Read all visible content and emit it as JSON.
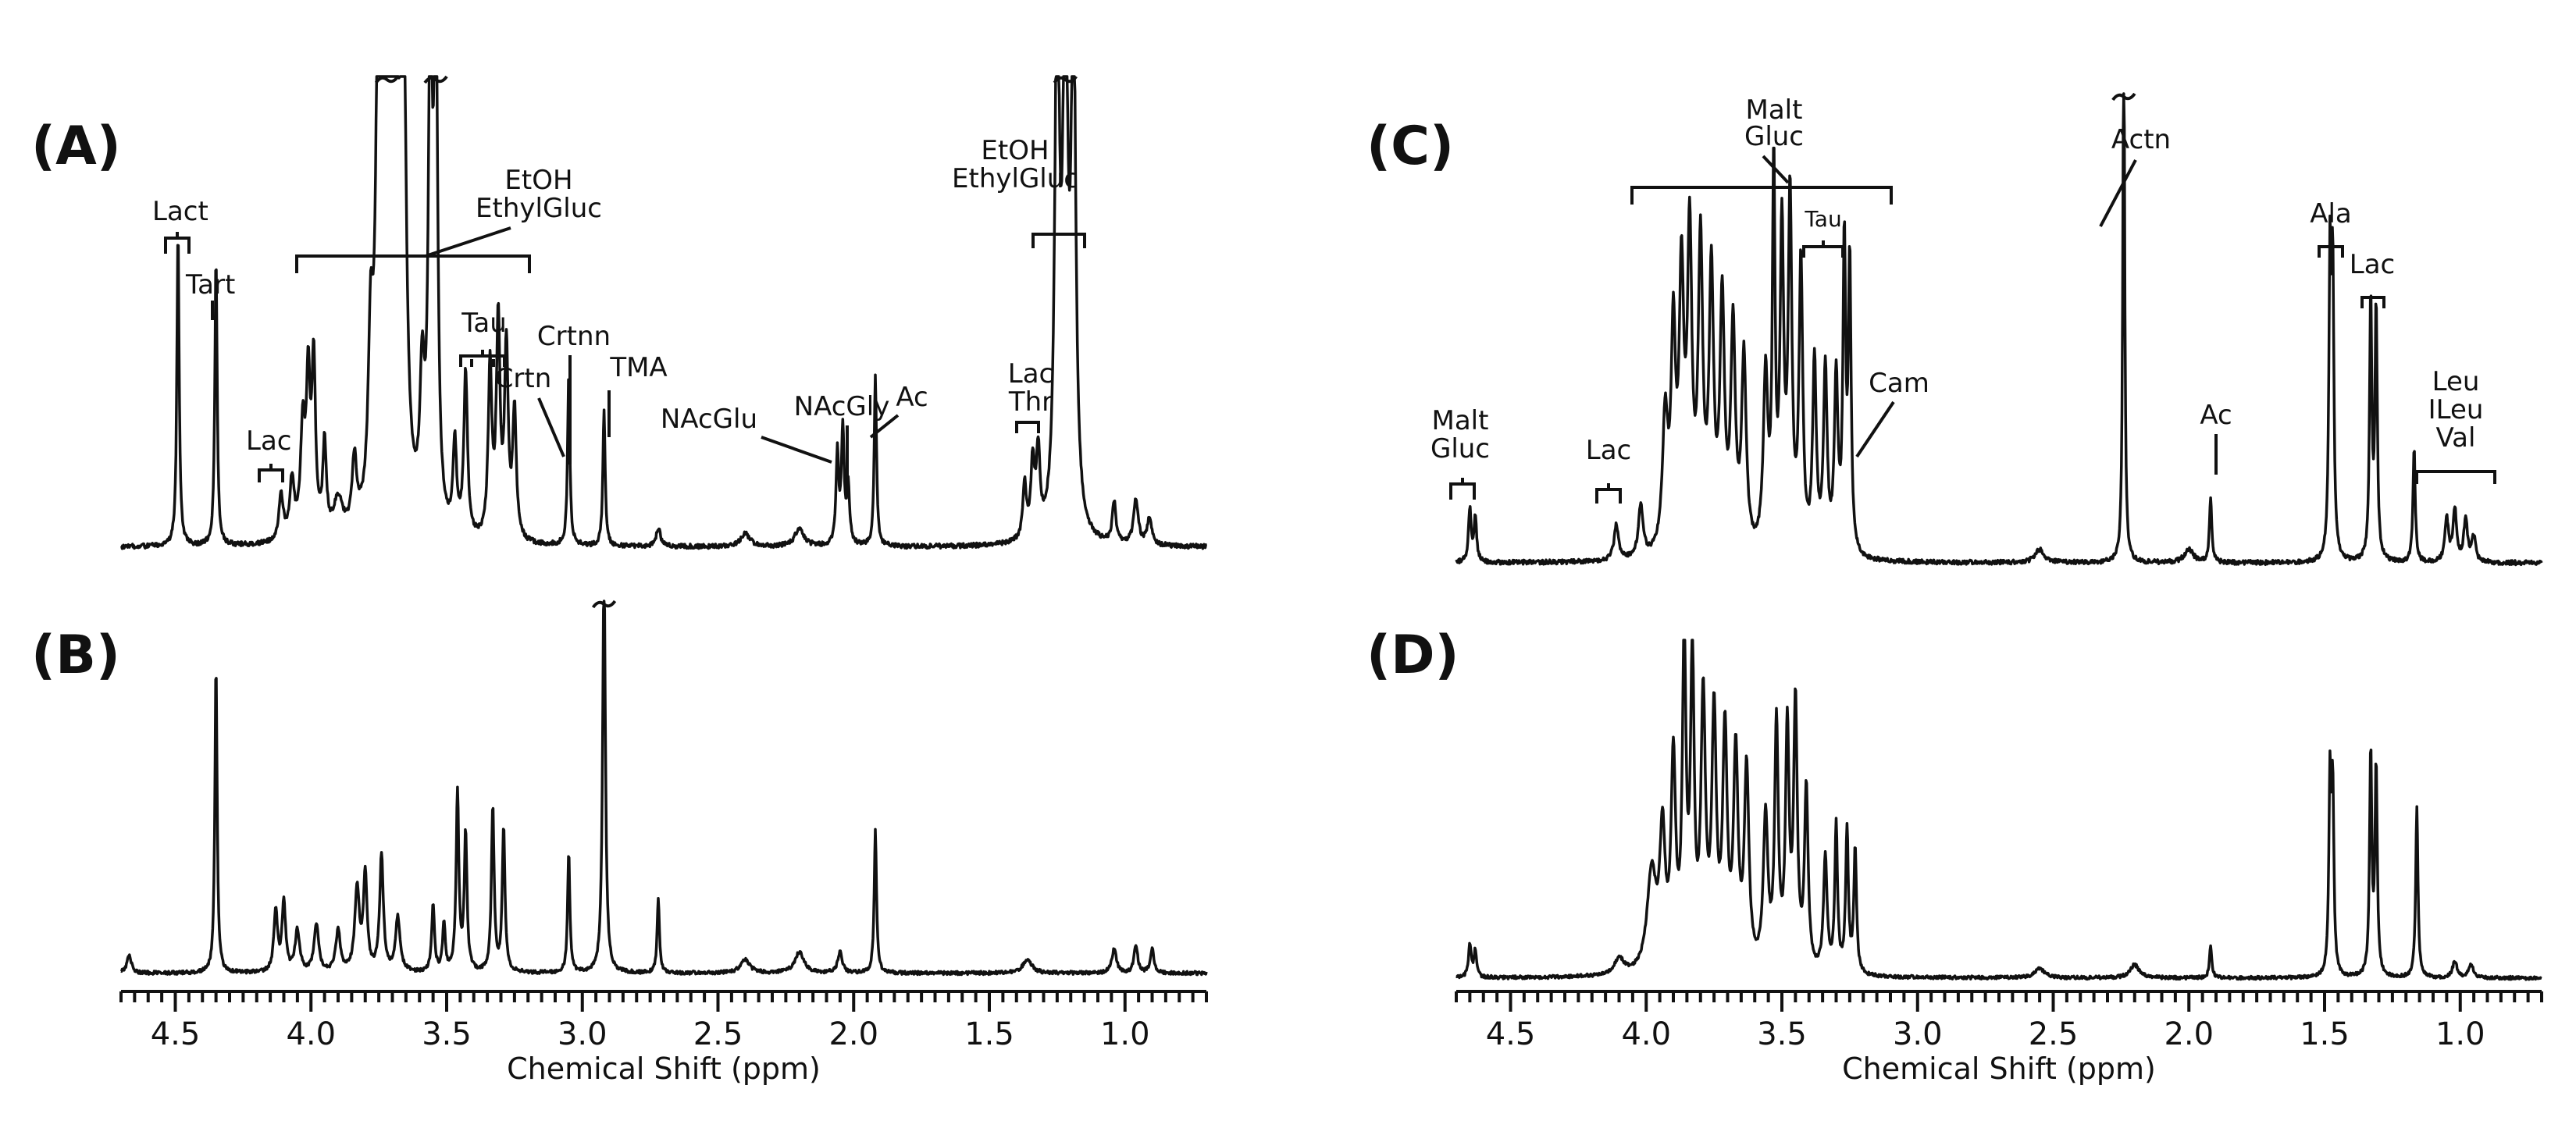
{
  "chart_data": [
    {
      "type": "line",
      "panel": "(A)",
      "x_unit": "Chemical Shift (ppm)",
      "xlim": [
        4.7,
        0.7
      ],
      "peaks": [
        {
          "x": 4.7,
          "y": 0.0,
          "w": 0.03
        },
        {
          "x": 4.49,
          "y": 0.7,
          "w": 0.005
        },
        {
          "x": 4.35,
          "y": 0.64,
          "w": 0.005
        },
        {
          "x": 4.11,
          "y": 0.1,
          "w": 0.01
        },
        {
          "x": 4.07,
          "y": 0.13,
          "w": 0.01
        },
        {
          "x": 4.03,
          "y": 0.24,
          "w": 0.01
        },
        {
          "x": 4.01,
          "y": 0.33,
          "w": 0.008
        },
        {
          "x": 3.99,
          "y": 0.38,
          "w": 0.008
        },
        {
          "x": 3.95,
          "y": 0.2,
          "w": 0.008
        },
        {
          "x": 3.9,
          "y": 0.08,
          "w": 0.02
        },
        {
          "x": 3.84,
          "y": 0.15,
          "w": 0.01
        },
        {
          "x": 3.78,
          "y": 0.35,
          "w": 0.01
        },
        {
          "x": 3.75,
          "y": 1.2,
          "w": 0.012
        },
        {
          "x": 3.72,
          "y": 1.22,
          "w": 0.012
        },
        {
          "x": 3.69,
          "y": 1.18,
          "w": 0.012
        },
        {
          "x": 3.66,
          "y": 1.14,
          "w": 0.012
        },
        {
          "x": 3.59,
          "y": 0.3,
          "w": 0.01
        },
        {
          "x": 3.56,
          "y": 1.15,
          "w": 0.008
        },
        {
          "x": 3.54,
          "y": 1.18,
          "w": 0.008
        },
        {
          "x": 3.47,
          "y": 0.2,
          "w": 0.008
        },
        {
          "x": 3.43,
          "y": 0.36,
          "w": 0.008
        },
        {
          "x": 3.34,
          "y": 0.38,
          "w": 0.008
        },
        {
          "x": 3.31,
          "y": 0.48,
          "w": 0.008
        },
        {
          "x": 3.28,
          "y": 0.42,
          "w": 0.008
        },
        {
          "x": 3.25,
          "y": 0.28,
          "w": 0.008
        },
        {
          "x": 3.05,
          "y": 0.38,
          "w": 0.005
        },
        {
          "x": 2.92,
          "y": 0.3,
          "w": 0.005
        },
        {
          "x": 2.72,
          "y": 0.04,
          "w": 0.01
        },
        {
          "x": 2.4,
          "y": 0.03,
          "w": 0.02
        },
        {
          "x": 2.2,
          "y": 0.04,
          "w": 0.02
        },
        {
          "x": 2.06,
          "y": 0.2,
          "w": 0.006
        },
        {
          "x": 2.04,
          "y": 0.25,
          "w": 0.006
        },
        {
          "x": 2.02,
          "y": 0.13,
          "w": 0.006
        },
        {
          "x": 1.92,
          "y": 0.38,
          "w": 0.005
        },
        {
          "x": 1.37,
          "y": 0.12,
          "w": 0.008
        },
        {
          "x": 1.34,
          "y": 0.16,
          "w": 0.008
        },
        {
          "x": 1.32,
          "y": 0.18,
          "w": 0.008
        },
        {
          "x": 1.25,
          "y": 1.2,
          "w": 0.01
        },
        {
          "x": 1.22,
          "y": 1.2,
          "w": 0.01
        },
        {
          "x": 1.19,
          "y": 1.16,
          "w": 0.01
        },
        {
          "x": 1.04,
          "y": 0.09,
          "w": 0.008
        },
        {
          "x": 0.96,
          "y": 0.1,
          "w": 0.01
        },
        {
          "x": 0.91,
          "y": 0.06,
          "w": 0.01
        }
      ],
      "clipped_peaks": [
        3.72,
        3.54,
        1.22
      ],
      "annotations": [
        {
          "label": "Lact",
          "x": 4.49
        },
        {
          "label": "Tart",
          "x": 4.35
        },
        {
          "label": "Lac",
          "x": 4.11
        },
        {
          "label": "EtOH EthylGluc",
          "x": 3.72
        },
        {
          "label": "Tau",
          "x": 3.34
        },
        {
          "label": "Crtn",
          "x": 3.05
        },
        {
          "label": "Crtnn",
          "x": 3.05
        },
        {
          "label": "TMA",
          "x": 2.92
        },
        {
          "label": "NAcGlu",
          "x": 2.06
        },
        {
          "label": "NAcGly",
          "x": 2.03
        },
        {
          "label": "Ac",
          "x": 1.92
        },
        {
          "label": "Lac Thr",
          "x": 1.33
        },
        {
          "label": "EtOH EthylGluc",
          "x": 1.22
        }
      ]
    },
    {
      "type": "line",
      "panel": "(B)",
      "x_unit": "Chemical Shift (ppm)",
      "xlim": [
        4.7,
        0.7
      ],
      "x_label": "Chemical Shift (ppm)",
      "x_ticks": [
        "4.5",
        "4.0",
        "3.5",
        "3.0",
        "2.5",
        "2.0",
        "1.5",
        "1.0"
      ],
      "peaks": [
        {
          "x": 4.67,
          "y": 0.05,
          "w": 0.01
        },
        {
          "x": 4.35,
          "y": 0.9,
          "w": 0.005
        },
        {
          "x": 4.13,
          "y": 0.18,
          "w": 0.008
        },
        {
          "x": 4.1,
          "y": 0.2,
          "w": 0.008
        },
        {
          "x": 4.05,
          "y": 0.12,
          "w": 0.01
        },
        {
          "x": 3.98,
          "y": 0.14,
          "w": 0.01
        },
        {
          "x": 3.9,
          "y": 0.12,
          "w": 0.01
        },
        {
          "x": 3.83,
          "y": 0.24,
          "w": 0.01
        },
        {
          "x": 3.8,
          "y": 0.28,
          "w": 0.008
        },
        {
          "x": 3.74,
          "y": 0.34,
          "w": 0.008
        },
        {
          "x": 3.68,
          "y": 0.16,
          "w": 0.01
        },
        {
          "x": 3.55,
          "y": 0.2,
          "w": 0.006
        },
        {
          "x": 3.51,
          "y": 0.14,
          "w": 0.006
        },
        {
          "x": 3.46,
          "y": 0.52,
          "w": 0.006
        },
        {
          "x": 3.43,
          "y": 0.4,
          "w": 0.006
        },
        {
          "x": 3.33,
          "y": 0.48,
          "w": 0.006
        },
        {
          "x": 3.29,
          "y": 0.42,
          "w": 0.006
        },
        {
          "x": 3.05,
          "y": 0.35,
          "w": 0.005
        },
        {
          "x": 2.92,
          "y": 1.2,
          "w": 0.006
        },
        {
          "x": 2.72,
          "y": 0.22,
          "w": 0.005
        },
        {
          "x": 2.4,
          "y": 0.04,
          "w": 0.02
        },
        {
          "x": 2.2,
          "y": 0.06,
          "w": 0.02
        },
        {
          "x": 2.05,
          "y": 0.06,
          "w": 0.01
        },
        {
          "x": 1.92,
          "y": 0.42,
          "w": 0.005
        },
        {
          "x": 1.36,
          "y": 0.04,
          "w": 0.02
        },
        {
          "x": 1.04,
          "y": 0.07,
          "w": 0.01
        },
        {
          "x": 0.96,
          "y": 0.08,
          "w": 0.008
        },
        {
          "x": 0.9,
          "y": 0.07,
          "w": 0.008
        }
      ],
      "clipped_peaks": [
        2.92
      ]
    },
    {
      "type": "line",
      "panel": "(C)",
      "x_unit": "Chemical Shift (ppm)",
      "xlim": [
        4.7,
        0.7
      ],
      "peaks": [
        {
          "x": 4.65,
          "y": 0.12,
          "w": 0.006
        },
        {
          "x": 4.63,
          "y": 0.1,
          "w": 0.006
        },
        {
          "x": 4.11,
          "y": 0.08,
          "w": 0.01
        },
        {
          "x": 4.02,
          "y": 0.12,
          "w": 0.01
        },
        {
          "x": 3.93,
          "y": 0.3,
          "w": 0.012
        },
        {
          "x": 3.9,
          "y": 0.48,
          "w": 0.01
        },
        {
          "x": 3.87,
          "y": 0.6,
          "w": 0.01
        },
        {
          "x": 3.84,
          "y": 0.7,
          "w": 0.01
        },
        {
          "x": 3.8,
          "y": 0.68,
          "w": 0.01
        },
        {
          "x": 3.76,
          "y": 0.62,
          "w": 0.01
        },
        {
          "x": 3.72,
          "y": 0.56,
          "w": 0.01
        },
        {
          "x": 3.68,
          "y": 0.5,
          "w": 0.01
        },
        {
          "x": 3.64,
          "y": 0.44,
          "w": 0.01
        },
        {
          "x": 3.56,
          "y": 0.4,
          "w": 0.01
        },
        {
          "x": 3.53,
          "y": 0.86,
          "w": 0.006
        },
        {
          "x": 3.5,
          "y": 0.72,
          "w": 0.008
        },
        {
          "x": 3.47,
          "y": 0.8,
          "w": 0.008
        },
        {
          "x": 3.43,
          "y": 0.66,
          "w": 0.008
        },
        {
          "x": 3.38,
          "y": 0.44,
          "w": 0.008
        },
        {
          "x": 3.34,
          "y": 0.42,
          "w": 0.008
        },
        {
          "x": 3.3,
          "y": 0.4,
          "w": 0.008
        },
        {
          "x": 3.27,
          "y": 0.7,
          "w": 0.006
        },
        {
          "x": 3.25,
          "y": 0.66,
          "w": 0.006
        },
        {
          "x": 2.55,
          "y": 0.03,
          "w": 0.02
        },
        {
          "x": 2.24,
          "y": 1.3,
          "w": 0.004
        },
        {
          "x": 2.0,
          "y": 0.03,
          "w": 0.02
        },
        {
          "x": 1.92,
          "y": 0.15,
          "w": 0.005
        },
        {
          "x": 1.48,
          "y": 0.66,
          "w": 0.005
        },
        {
          "x": 1.47,
          "y": 0.64,
          "w": 0.005
        },
        {
          "x": 1.33,
          "y": 0.6,
          "w": 0.005
        },
        {
          "x": 1.31,
          "y": 0.58,
          "w": 0.005
        },
        {
          "x": 1.17,
          "y": 0.26,
          "w": 0.005
        },
        {
          "x": 1.05,
          "y": 0.1,
          "w": 0.008
        },
        {
          "x": 1.02,
          "y": 0.12,
          "w": 0.008
        },
        {
          "x": 0.98,
          "y": 0.1,
          "w": 0.008
        },
        {
          "x": 0.95,
          "y": 0.06,
          "w": 0.008
        }
      ],
      "clipped_peaks": [
        2.24
      ],
      "annotations": [
        {
          "label": "Malt Gluc",
          "x": 4.64
        },
        {
          "label": "Lac",
          "x": 4.11
        },
        {
          "label": "Malt Gluc",
          "x": 3.5
        },
        {
          "label": "Tau",
          "x": 3.38
        },
        {
          "label": "Cam",
          "x": 3.26
        },
        {
          "label": "Actn",
          "x": 2.24
        },
        {
          "label": "Ac",
          "x": 1.92
        },
        {
          "label": "Ala",
          "x": 1.48
        },
        {
          "label": "Lac",
          "x": 1.33
        },
        {
          "label": "Leu ILeu Val",
          "x": 1.0
        }
      ]
    },
    {
      "type": "line",
      "panel": "(D)",
      "x_unit": "Chemical Shift (ppm)",
      "xlim": [
        4.7,
        0.7
      ],
      "x_label": "Chemical Shift (ppm)",
      "x_ticks": [
        "4.5",
        "4.0",
        "3.5",
        "3.0",
        "2.5",
        "2.0",
        "1.5",
        "1.0"
      ],
      "peaks": [
        {
          "x": 4.65,
          "y": 0.1,
          "w": 0.006
        },
        {
          "x": 4.63,
          "y": 0.08,
          "w": 0.006
        },
        {
          "x": 4.1,
          "y": 0.05,
          "w": 0.02
        },
        {
          "x": 3.98,
          "y": 0.3,
          "w": 0.02
        },
        {
          "x": 3.94,
          "y": 0.4,
          "w": 0.012
        },
        {
          "x": 3.9,
          "y": 0.62,
          "w": 0.01
        },
        {
          "x": 3.86,
          "y": 0.98,
          "w": 0.008
        },
        {
          "x": 3.83,
          "y": 0.92,
          "w": 0.008
        },
        {
          "x": 3.79,
          "y": 0.8,
          "w": 0.01
        },
        {
          "x": 3.75,
          "y": 0.75,
          "w": 0.01
        },
        {
          "x": 3.71,
          "y": 0.7,
          "w": 0.01
        },
        {
          "x": 3.67,
          "y": 0.64,
          "w": 0.01
        },
        {
          "x": 3.63,
          "y": 0.6,
          "w": 0.01
        },
        {
          "x": 3.56,
          "y": 0.46,
          "w": 0.01
        },
        {
          "x": 3.52,
          "y": 0.74,
          "w": 0.008
        },
        {
          "x": 3.48,
          "y": 0.72,
          "w": 0.008
        },
        {
          "x": 3.45,
          "y": 0.8,
          "w": 0.008
        },
        {
          "x": 3.41,
          "y": 0.55,
          "w": 0.008
        },
        {
          "x": 3.34,
          "y": 0.35,
          "w": 0.008
        },
        {
          "x": 3.3,
          "y": 0.45,
          "w": 0.006
        },
        {
          "x": 3.26,
          "y": 0.44,
          "w": 0.006
        },
        {
          "x": 3.23,
          "y": 0.38,
          "w": 0.006
        },
        {
          "x": 2.55,
          "y": 0.03,
          "w": 0.02
        },
        {
          "x": 2.2,
          "y": 0.04,
          "w": 0.02
        },
        {
          "x": 1.92,
          "y": 0.1,
          "w": 0.005
        },
        {
          "x": 1.48,
          "y": 0.58,
          "w": 0.005
        },
        {
          "x": 1.47,
          "y": 0.55,
          "w": 0.005
        },
        {
          "x": 1.33,
          "y": 0.68,
          "w": 0.005
        },
        {
          "x": 1.31,
          "y": 0.64,
          "w": 0.005
        },
        {
          "x": 1.16,
          "y": 0.52,
          "w": 0.005
        },
        {
          "x": 1.02,
          "y": 0.05,
          "w": 0.01
        },
        {
          "x": 0.96,
          "y": 0.04,
          "w": 0.01
        }
      ]
    }
  ],
  "labels": {
    "a": "(A)",
    "b": "(B)",
    "c": "(C)",
    "d": "(D)",
    "xlabel_left": "Chemical Shift (ppm)",
    "xlabel_right": "Chemical Shift (ppm)",
    "ticks": [
      "4.5",
      "4.0",
      "3.5",
      "3.0",
      "2.5",
      "2.0",
      "1.5",
      "1.0"
    ],
    "A": {
      "lact": "Lact",
      "tart": "Tart",
      "lac": "Lac",
      "etoh1": "EtOH",
      "ethylgluc1": "EthylGluc",
      "tau": "Tau",
      "crtnn": "Crtnn",
      "crtn": "Crtn",
      "tma": "TMA",
      "nacgly": "NAcGly",
      "nacglu": "NAcGlu",
      "ac": "Ac",
      "lac2": "Lac",
      "thr": "Thr",
      "etoh2": "EtOH",
      "ethylgluc2": "EthylGluc"
    },
    "C": {
      "malt1": "Malt",
      "gluc1": "Gluc",
      "lac": "Lac",
      "malt2": "Malt",
      "gluc2": "Gluc",
      "tau": "Tau",
      "cam": "Cam",
      "actn": "Actn",
      "ac": "Ac",
      "ala": "Ala",
      "lac2": "Lac",
      "leu": "Leu",
      "ileu": "ILeu",
      "val": "Val"
    }
  }
}
